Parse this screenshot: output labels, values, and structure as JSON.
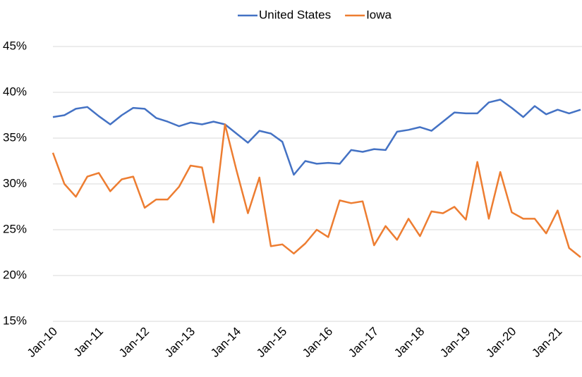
{
  "chart_data": {
    "type": "line",
    "categories": [
      "Jan-10",
      null,
      null,
      null,
      "Jan-11",
      null,
      null,
      null,
      "Jan-12",
      null,
      null,
      null,
      "Jan-13",
      null,
      null,
      null,
      "Jan-14",
      null,
      null,
      null,
      "Jan-15",
      null,
      null,
      null,
      "Jan-16",
      null,
      null,
      null,
      "Jan-17",
      null,
      null,
      null,
      "Jan-18",
      null,
      null,
      null,
      "Jan-19",
      null,
      null,
      null,
      "Jan-20",
      null,
      null,
      null,
      "Jan-21",
      null,
      null
    ],
    "series": [
      {
        "name": "United States",
        "color": "#4472c4",
        "values": [
          37.3,
          37.5,
          38.2,
          38.4,
          37.4,
          36.5,
          37.5,
          38.3,
          38.2,
          37.2,
          36.8,
          36.3,
          36.7,
          36.5,
          36.8,
          36.5,
          35.5,
          34.5,
          35.8,
          35.5,
          34.6,
          31.0,
          32.5,
          32.2,
          32.3,
          32.2,
          33.7,
          33.5,
          33.8,
          33.7,
          35.7,
          35.9,
          36.2,
          35.8,
          36.8,
          37.8,
          37.7,
          37.7,
          38.9,
          39.2,
          38.3,
          37.3,
          38.5,
          37.6,
          38.1,
          37.7,
          38.1
        ]
      },
      {
        "name": "Iowa",
        "color": "#ed7d31",
        "values": [
          33.4,
          30.0,
          28.6,
          30.8,
          31.2,
          29.2,
          30.5,
          30.8,
          27.4,
          28.3,
          28.3,
          29.7,
          32.0,
          31.8,
          25.8,
          36.5,
          31.5,
          26.8,
          30.7,
          23.2,
          23.4,
          22.4,
          23.5,
          25.0,
          24.2,
          28.2,
          27.9,
          28.1,
          23.3,
          25.4,
          23.9,
          26.2,
          24.3,
          27.0,
          26.8,
          27.5,
          26.1,
          32.4,
          26.2,
          31.3,
          26.9,
          26.2,
          26.2,
          24.6,
          27.1,
          23.0,
          22.0
        ]
      }
    ],
    "ylim": [
      15,
      45
    ],
    "yticks": [
      {
        "value": 15,
        "label": "15%"
      },
      {
        "value": 20,
        "label": "20%"
      },
      {
        "value": 25,
        "label": "25%"
      },
      {
        "value": 30,
        "label": "30%"
      },
      {
        "value": 35,
        "label": "35%"
      },
      {
        "value": 40,
        "label": "40%"
      },
      {
        "value": 45,
        "label": "45%"
      }
    ],
    "grid": true,
    "legend": "top"
  }
}
